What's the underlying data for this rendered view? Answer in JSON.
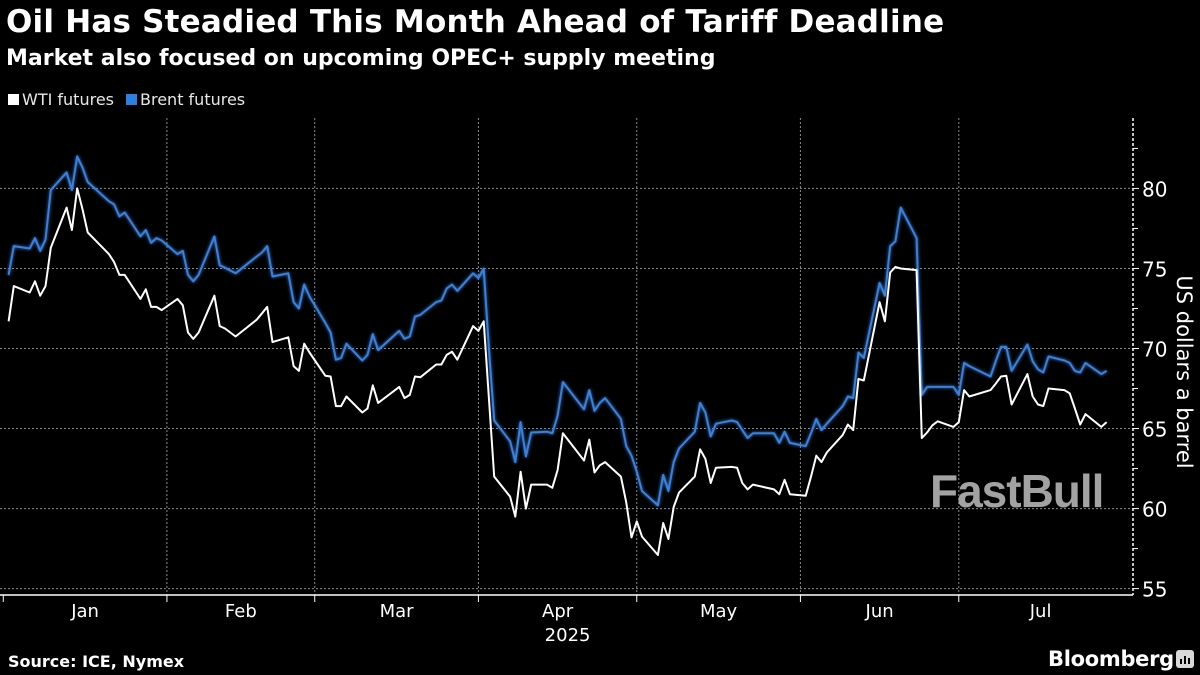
{
  "header": {
    "title": "Oil Has Steadied This Month Ahead of Tariff Deadline",
    "subtitle": "Market also focused on upcoming OPEC+ supply meeting"
  },
  "legend": [
    {
      "label": "WTI futures",
      "color": "#ffffff"
    },
    {
      "label": "Brent futures",
      "color": "#3a80dc"
    }
  ],
  "footer": {
    "source": "Source: ICE, Nymex",
    "brand": "Bloomberg",
    "watermark": "FastBull"
  },
  "chart_data": {
    "type": "line",
    "title": "Oil Has Steadied This Month Ahead of Tariff Deadline",
    "subtitle": "Market also focused on upcoming OPEC+ supply meeting",
    "xlabel": "",
    "ylabel": "US dollars a barrel",
    "xlim": [
      "2024-12-31",
      "2025-08-03"
    ],
    "ylim": [
      54.6,
      84.4
    ],
    "yticks": [
      55,
      60,
      65,
      70,
      75,
      80
    ],
    "xtick_labels": [
      "Jan",
      "Feb",
      "Mar",
      "Apr",
      "May",
      "Jun",
      "Jul"
    ],
    "year_label": "2025",
    "grid": true,
    "legend_position": "top-left",
    "x": [
      "2025-01-02",
      "2025-01-03",
      "2025-01-06",
      "2025-01-07",
      "2025-01-08",
      "2025-01-09",
      "2025-01-10",
      "2025-01-13",
      "2025-01-14",
      "2025-01-15",
      "2025-01-16",
      "2025-01-17",
      "2025-01-21",
      "2025-01-22",
      "2025-01-23",
      "2025-01-24",
      "2025-01-27",
      "2025-01-28",
      "2025-01-29",
      "2025-01-30",
      "2025-01-31",
      "2025-02-03",
      "2025-02-04",
      "2025-02-05",
      "2025-02-06",
      "2025-02-07",
      "2025-02-10",
      "2025-02-11",
      "2025-02-12",
      "2025-02-14",
      "2025-02-18",
      "2025-02-19",
      "2025-02-20",
      "2025-02-21",
      "2025-02-24",
      "2025-02-25",
      "2025-02-26",
      "2025-02-27",
      "2025-02-28",
      "2025-03-03",
      "2025-03-04",
      "2025-03-05",
      "2025-03-06",
      "2025-03-07",
      "2025-03-10",
      "2025-03-11",
      "2025-03-12",
      "2025-03-13",
      "2025-03-17",
      "2025-03-18",
      "2025-03-19",
      "2025-03-20",
      "2025-03-21",
      "2025-03-24",
      "2025-03-25",
      "2025-03-26",
      "2025-03-27",
      "2025-03-28",
      "2025-03-31",
      "2025-04-01",
      "2025-04-02",
      "2025-04-03",
      "2025-04-04",
      "2025-04-07",
      "2025-04-08",
      "2025-04-09",
      "2025-04-10",
      "2025-04-11",
      "2025-04-14",
      "2025-04-15",
      "2025-04-16",
      "2025-04-17",
      "2025-04-21",
      "2025-04-22",
      "2025-04-23",
      "2025-04-24",
      "2025-04-25",
      "2025-04-28",
      "2025-04-29",
      "2025-04-30",
      "2025-05-01",
      "2025-05-02",
      "2025-05-05",
      "2025-05-06",
      "2025-05-07",
      "2025-05-08",
      "2025-05-09",
      "2025-05-12",
      "2025-05-13",
      "2025-05-14",
      "2025-05-15",
      "2025-05-16",
      "2025-05-19",
      "2025-05-20",
      "2025-05-21",
      "2025-05-22",
      "2025-05-23",
      "2025-05-27",
      "2025-05-28",
      "2025-05-29",
      "2025-05-30",
      "2025-06-02",
      "2025-06-03",
      "2025-06-04",
      "2025-06-05",
      "2025-06-06",
      "2025-06-09",
      "2025-06-10",
      "2025-06-11",
      "2025-06-12",
      "2025-06-13",
      "2025-06-16",
      "2025-06-17",
      "2025-06-18",
      "2025-06-19",
      "2025-06-20",
      "2025-06-23",
      "2025-06-24",
      "2025-06-25",
      "2025-06-26",
      "2025-06-27",
      "2025-06-30",
      "2025-07-01",
      "2025-07-02",
      "2025-07-03",
      "2025-07-07",
      "2025-07-08",
      "2025-07-09",
      "2025-07-10",
      "2025-07-11",
      "2025-07-14",
      "2025-07-15",
      "2025-07-16",
      "2025-07-17",
      "2025-07-18",
      "2025-07-21",
      "2025-07-22",
      "2025-07-23",
      "2025-07-24",
      "2025-07-25",
      "2025-07-28",
      "2025-07-29"
    ],
    "series": [
      {
        "name": "WTI futures",
        "color": "#ffffff",
        "values": [
          71.7,
          73.9,
          73.5,
          74.2,
          73.3,
          73.9,
          76.3,
          78.8,
          77.4,
          80.0,
          78.7,
          77.25,
          75.9,
          75.4,
          74.6,
          74.6,
          73.1,
          73.7,
          72.6,
          72.6,
          72.4,
          73.1,
          72.7,
          71.0,
          70.6,
          71.0,
          73.3,
          71.4,
          71.25,
          70.75,
          71.8,
          72.2,
          72.6,
          70.4,
          70.7,
          68.9,
          68.6,
          70.3,
          69.75,
          68.3,
          68.25,
          66.4,
          66.4,
          67.0,
          66.0,
          66.25,
          67.7,
          66.6,
          67.6,
          66.9,
          67.1,
          68.25,
          68.2,
          69.0,
          69.0,
          69.6,
          69.8,
          69.3,
          71.4,
          71.1,
          71.7,
          66.8,
          62.0,
          60.75,
          59.5,
          62.3,
          60.0,
          61.5,
          61.5,
          61.3,
          62.4,
          64.7,
          63.0,
          64.3,
          62.25,
          62.7,
          62.9,
          62.0,
          60.4,
          58.2,
          59.2,
          58.25,
          57.1,
          59.1,
          58.1,
          60.1,
          61.0,
          62.0,
          63.7,
          63.1,
          61.6,
          62.55,
          62.6,
          62.55,
          61.6,
          61.2,
          61.5,
          61.2,
          60.9,
          61.8,
          60.9,
          60.8,
          62.0,
          63.3,
          62.9,
          63.5,
          64.6,
          65.25,
          64.9,
          68.1,
          68.0,
          72.9,
          71.7,
          74.75,
          75.1,
          75.0,
          74.9,
          64.4,
          64.75,
          65.2,
          65.45,
          65.1,
          65.4,
          67.4,
          67.0,
          67.4,
          67.8,
          68.25,
          68.3,
          66.5,
          68.4,
          67.0,
          66.5,
          66.4,
          67.5,
          67.4,
          67.2,
          66.25,
          65.25,
          65.9,
          65.1,
          65.4
        ]
      },
      {
        "name": "Brent futures",
        "color": "#3a80dc",
        "values": [
          74.6,
          76.4,
          76.25,
          76.9,
          76.1,
          76.8,
          79.9,
          81.0,
          79.9,
          82.0,
          81.3,
          80.4,
          79.2,
          79.0,
          78.25,
          78.5,
          77.0,
          77.4,
          76.6,
          76.9,
          76.75,
          75.9,
          76.1,
          74.6,
          74.2,
          74.6,
          77.0,
          75.2,
          75.05,
          74.7,
          75.75,
          76.0,
          76.4,
          74.5,
          74.7,
          72.9,
          72.5,
          74.0,
          73.25,
          71.6,
          71.0,
          69.3,
          69.4,
          70.3,
          69.25,
          69.6,
          70.9,
          69.9,
          71.1,
          70.6,
          70.75,
          72.0,
          72.1,
          72.9,
          73.0,
          73.75,
          74.0,
          73.6,
          74.7,
          74.4,
          75.0,
          69.9,
          65.5,
          64.2,
          62.9,
          65.4,
          63.25,
          64.75,
          64.8,
          64.7,
          65.8,
          67.9,
          66.2,
          67.4,
          66.1,
          66.6,
          66.9,
          65.6,
          63.9,
          63.3,
          62.3,
          61.1,
          60.2,
          62.1,
          61.1,
          62.9,
          63.75,
          64.8,
          66.6,
          66.0,
          64.5,
          65.3,
          65.5,
          65.4,
          64.9,
          64.4,
          64.7,
          64.7,
          64.1,
          64.8,
          64.1,
          63.9,
          64.7,
          65.6,
          64.9,
          65.3,
          66.4,
          67.0,
          66.9,
          69.75,
          69.4,
          74.1,
          73.3,
          76.4,
          76.7,
          78.8,
          76.9,
          67.1,
          67.6,
          67.6,
          67.6,
          67.6,
          67.1,
          69.1,
          68.9,
          68.25,
          69.2,
          70.1,
          70.1,
          68.6,
          70.25,
          69.2,
          68.7,
          68.5,
          69.5,
          69.25,
          69.1,
          68.6,
          68.5,
          69.1,
          68.4,
          68.6
        ]
      }
    ]
  }
}
